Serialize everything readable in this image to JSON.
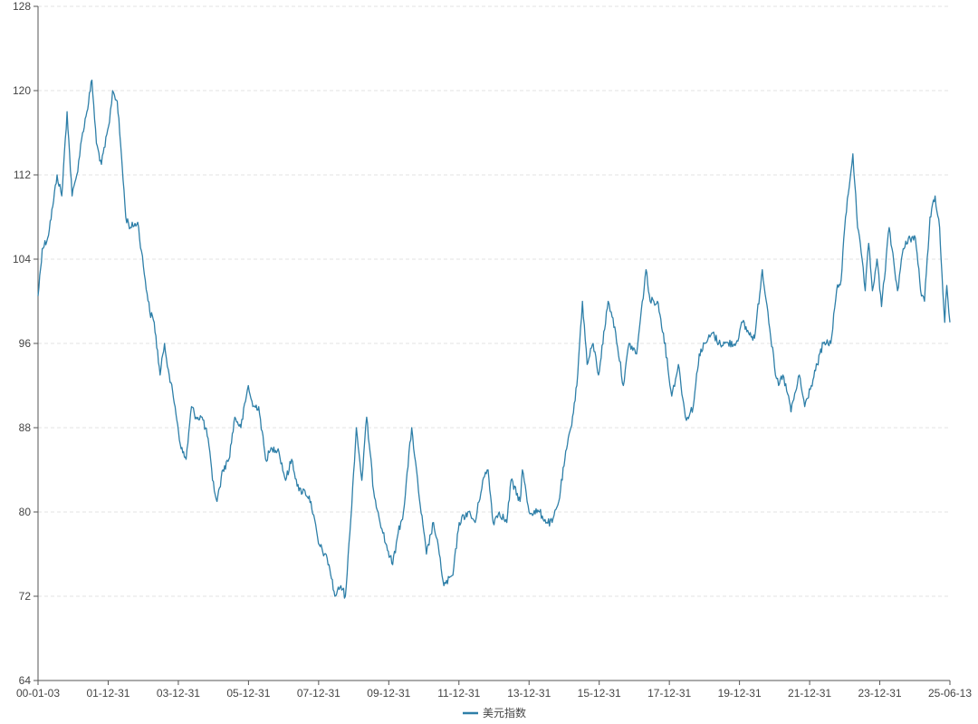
{
  "chart_data": {
    "type": "line",
    "title": "",
    "xlabel": "",
    "ylabel": "",
    "ylim": [
      64,
      128
    ],
    "y_ticks": [
      64,
      72,
      80,
      88,
      96,
      104,
      112,
      120,
      128
    ],
    "x_ticks": [
      "00-01-03",
      "01-12-31",
      "03-12-31",
      "05-12-31",
      "07-12-31",
      "09-12-31",
      "11-12-31",
      "13-12-31",
      "15-12-31",
      "17-12-31",
      "19-12-31",
      "21-12-31",
      "23-12-31",
      "25-06-13"
    ],
    "grid": {
      "y": true,
      "x": false
    },
    "legend": {
      "position": "bottom-center"
    },
    "series": [
      {
        "name": "美元指数",
        "color": "#2e7fa8",
        "points": [
          [
            "2000-01-03",
            100.5
          ],
          [
            "2000-02-15",
            105
          ],
          [
            "2000-04-10",
            106
          ],
          [
            "2000-06-01",
            109
          ],
          [
            "2000-07-15",
            112
          ],
          [
            "2000-09-01",
            110
          ],
          [
            "2000-10-25",
            118
          ],
          [
            "2000-12-15",
            110
          ],
          [
            "2001-02-01",
            112
          ],
          [
            "2001-04-01",
            116
          ],
          [
            "2001-05-15",
            118
          ],
          [
            "2001-07-05",
            121
          ],
          [
            "2001-08-20",
            115
          ],
          [
            "2001-10-10",
            113
          ],
          [
            "2001-12-31",
            117
          ],
          [
            "2002-02-01",
            120
          ],
          [
            "2002-03-20",
            119
          ],
          [
            "2002-05-01",
            114
          ],
          [
            "2002-06-15",
            108
          ],
          [
            "2002-08-01",
            107
          ],
          [
            "2002-10-15",
            107.5
          ],
          [
            "2002-12-31",
            102
          ],
          [
            "2003-02-15",
            99
          ],
          [
            "2003-04-01",
            98
          ],
          [
            "2003-05-31",
            93
          ],
          [
            "2003-07-15",
            96
          ],
          [
            "2003-09-01",
            93
          ],
          [
            "2003-10-31",
            90
          ],
          [
            "2003-12-31",
            86
          ],
          [
            "2004-02-20",
            85
          ],
          [
            "2004-04-15",
            90
          ],
          [
            "2004-06-01",
            89
          ],
          [
            "2004-08-01",
            89
          ],
          [
            "2004-10-01",
            87
          ],
          [
            "2004-11-15",
            83
          ],
          [
            "2004-12-31",
            81
          ],
          [
            "2005-03-01",
            84
          ],
          [
            "2005-05-01",
            85
          ],
          [
            "2005-07-01",
            89
          ],
          [
            "2005-08-31",
            88
          ],
          [
            "2005-11-15",
            92
          ],
          [
            "2005-12-31",
            90
          ],
          [
            "2006-03-01",
            90
          ],
          [
            "2006-05-10",
            85
          ],
          [
            "2006-07-15",
            86
          ],
          [
            "2006-09-15",
            86
          ],
          [
            "2006-11-30",
            83
          ],
          [
            "2007-01-31",
            85
          ],
          [
            "2007-04-15",
            82
          ],
          [
            "2007-06-15",
            82
          ],
          [
            "2007-08-15",
            81
          ],
          [
            "2007-10-31",
            77
          ],
          [
            "2007-12-31",
            76
          ],
          [
            "2008-02-15",
            75
          ],
          [
            "2008-04-15",
            72
          ],
          [
            "2008-06-15",
            73
          ],
          [
            "2008-07-31",
            72
          ],
          [
            "2008-09-15",
            78
          ],
          [
            "2008-11-20",
            88
          ],
          [
            "2009-01-15",
            83
          ],
          [
            "2009-03-05",
            89
          ],
          [
            "2009-05-15",
            82
          ],
          [
            "2009-06-30",
            80
          ],
          [
            "2009-09-15",
            77
          ],
          [
            "2009-11-25",
            75
          ],
          [
            "2010-01-20",
            78
          ],
          [
            "2010-03-15",
            80
          ],
          [
            "2010-06-07",
            88
          ],
          [
            "2010-08-15",
            82
          ],
          [
            "2010-11-04",
            76
          ],
          [
            "2011-01-15",
            79
          ],
          [
            "2011-03-15",
            76
          ],
          [
            "2011-05-01",
            73
          ],
          [
            "2011-08-01",
            74
          ],
          [
            "2011-10-04",
            79
          ],
          [
            "2011-12-31",
            80
          ],
          [
            "2012-03-15",
            79
          ],
          [
            "2012-05-31",
            83
          ],
          [
            "2012-07-24",
            84
          ],
          [
            "2012-09-14",
            79
          ],
          [
            "2012-11-15",
            80
          ],
          [
            "2013-01-31",
            79
          ],
          [
            "2013-03-15",
            83
          ],
          [
            "2013-06-15",
            81
          ],
          [
            "2013-07-09",
            84
          ],
          [
            "2013-09-15",
            80
          ],
          [
            "2013-12-31",
            80
          ],
          [
            "2014-03-15",
            79
          ],
          [
            "2014-05-08",
            79
          ],
          [
            "2014-07-15",
            81
          ],
          [
            "2014-09-15",
            85
          ],
          [
            "2014-11-15",
            88
          ],
          [
            "2015-01-15",
            92
          ],
          [
            "2015-03-13",
            100
          ],
          [
            "2015-04-30",
            94
          ],
          [
            "2015-06-30",
            96
          ],
          [
            "2015-08-24",
            93
          ],
          [
            "2015-11-30",
            100
          ],
          [
            "2015-12-31",
            99
          ],
          [
            "2016-02-15",
            97
          ],
          [
            "2016-05-03",
            92
          ],
          [
            "2016-06-30",
            96
          ],
          [
            "2016-09-15",
            95
          ],
          [
            "2016-12-20",
            103
          ],
          [
            "2017-01-31",
            100
          ],
          [
            "2017-04-15",
            100
          ],
          [
            "2017-06-15",
            97
          ],
          [
            "2017-09-08",
            91
          ],
          [
            "2017-11-15",
            94
          ],
          [
            "2018-01-25",
            89
          ],
          [
            "2018-02-15",
            89
          ],
          [
            "2018-04-15",
            90
          ],
          [
            "2018-06-15",
            95
          ],
          [
            "2018-08-15",
            96
          ],
          [
            "2018-10-31",
            97
          ],
          [
            "2018-12-31",
            96
          ],
          [
            "2019-03-01",
            96
          ],
          [
            "2019-06-25",
            96
          ],
          [
            "2019-08-31",
            98
          ],
          [
            "2019-10-31",
            97
          ],
          [
            "2019-12-31",
            96.5
          ],
          [
            "2020-03-19",
            103
          ],
          [
            "2020-05-15",
            99
          ],
          [
            "2020-07-31",
            93
          ],
          [
            "2020-09-01",
            92
          ],
          [
            "2020-10-15",
            93
          ],
          [
            "2020-12-31",
            90
          ],
          [
            "2021-01-06",
            89.5
          ],
          [
            "2021-03-31",
            93
          ],
          [
            "2021-05-25",
            90
          ],
          [
            "2021-07-31",
            92
          ],
          [
            "2021-09-30",
            94
          ],
          [
            "2021-11-30",
            96
          ],
          [
            "2021-12-31",
            96
          ],
          [
            "2022-02-15",
            96
          ],
          [
            "2022-04-15",
            101
          ],
          [
            "2022-05-31",
            102
          ],
          [
            "2022-07-15",
            108
          ],
          [
            "2022-09-28",
            114
          ],
          [
            "2022-11-15",
            107
          ],
          [
            "2022-12-31",
            104
          ],
          [
            "2023-02-01",
            101
          ],
          [
            "2023-03-08",
            105.5
          ],
          [
            "2023-04-15",
            101
          ],
          [
            "2023-06-01",
            104
          ],
          [
            "2023-07-17",
            99.5
          ],
          [
            "2023-10-03",
            107
          ],
          [
            "2023-12-27",
            101
          ],
          [
            "2024-02-14",
            104.5
          ],
          [
            "2024-04-16",
            106
          ],
          [
            "2024-06-26",
            106
          ],
          [
            "2024-08-27",
            100.5
          ],
          [
            "2024-09-27",
            100
          ],
          [
            "2024-11-22",
            108
          ],
          [
            "2025-01-13",
            110
          ],
          [
            "2025-02-28",
            107
          ],
          [
            "2025-03-15",
            104
          ],
          [
            "2025-04-21",
            98
          ],
          [
            "2025-05-12",
            101.5
          ],
          [
            "2025-06-13",
            98
          ]
        ]
      }
    ]
  }
}
